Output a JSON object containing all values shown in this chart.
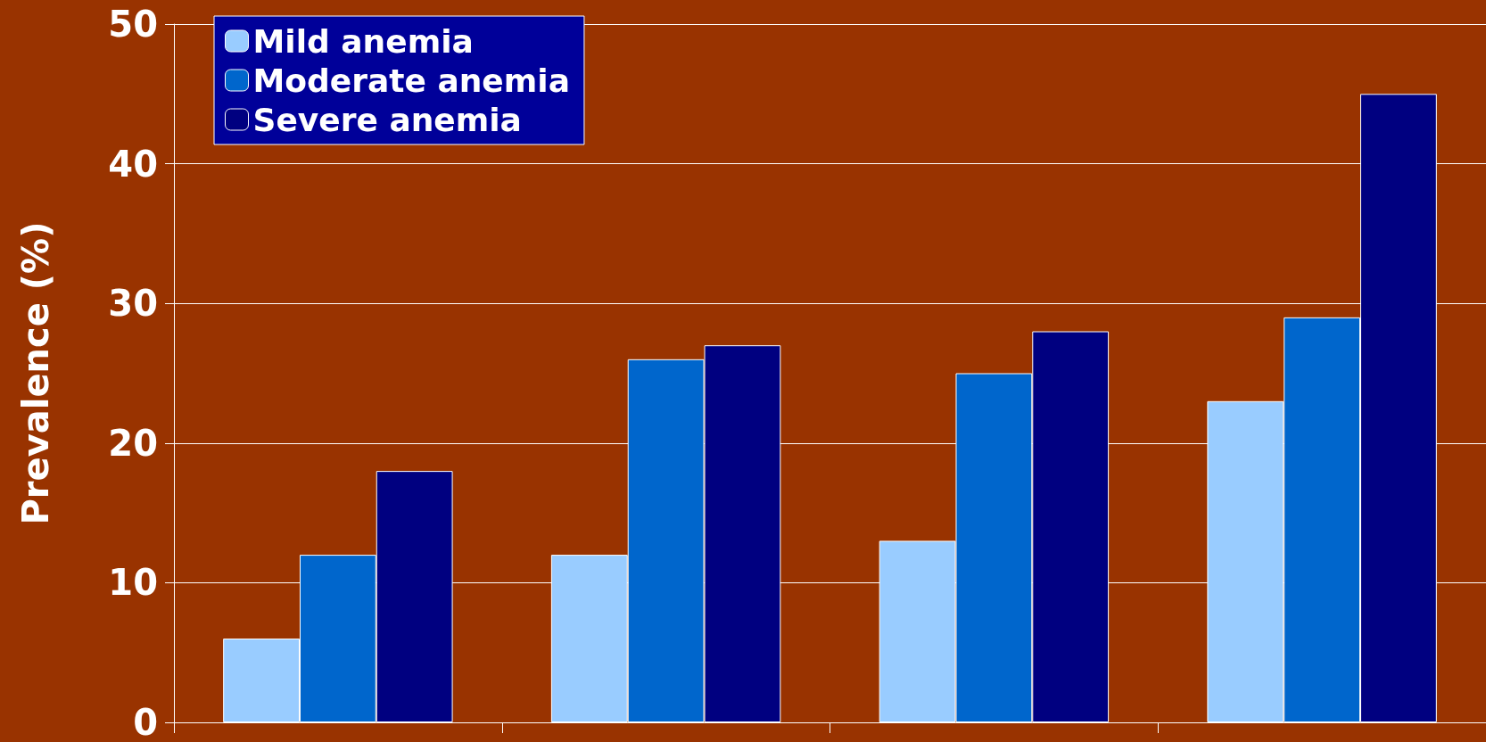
{
  "chart_data": {
    "type": "bar",
    "ylabel": "Prevalence (%)",
    "categories": [
      null,
      null,
      null,
      null
    ],
    "series": [
      {
        "name": "Mild anemia",
        "color": "#99ccff",
        "values": [
          6,
          12,
          13,
          23
        ]
      },
      {
        "name": "Moderate anemia",
        "color": "#0066cc",
        "values": [
          12,
          26,
          25,
          29
        ]
      },
      {
        "name": "Severe anemia",
        "color": "#000080",
        "values": [
          18,
          27,
          28,
          45
        ]
      }
    ],
    "ylim": [
      0,
      50
    ],
    "yticks": [
      0,
      10,
      20,
      30,
      40,
      50
    ],
    "grid": "y",
    "legend": "top left"
  }
}
